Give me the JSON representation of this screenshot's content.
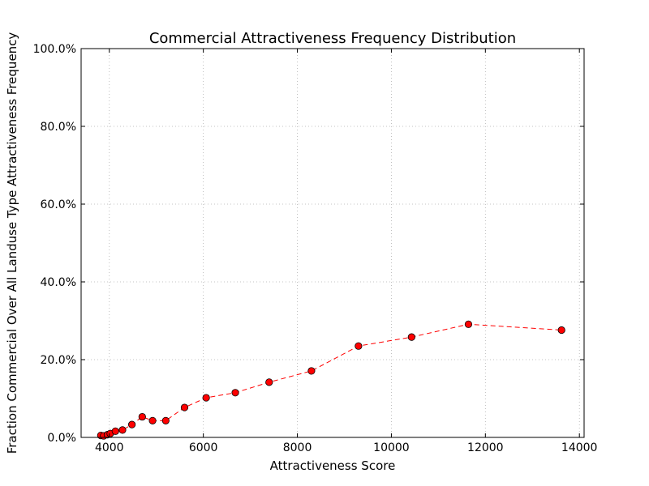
{
  "chart_data": {
    "type": "line",
    "title": "Commercial Attractiveness Frequency Distribution",
    "xlabel": "Attractiveness Score",
    "ylabel": "Fraction Commercial Over All Landuse Type Attractiveness Frequency",
    "xlim": [
      3400,
      14100
    ],
    "ylim": [
      0,
      1
    ],
    "xticks": [
      {
        "value": 4000,
        "label": "4000"
      },
      {
        "value": 6000,
        "label": "6000"
      },
      {
        "value": 8000,
        "label": "8000"
      },
      {
        "value": 10000,
        "label": "10000"
      },
      {
        "value": 12000,
        "label": "12000"
      },
      {
        "value": 14000,
        "label": "14000"
      }
    ],
    "yticks": [
      {
        "value": 0.0,
        "label": "0.0%"
      },
      {
        "value": 0.2,
        "label": "20.0%"
      },
      {
        "value": 0.4,
        "label": "40.0%"
      },
      {
        "value": 0.6,
        "label": "60.0%"
      },
      {
        "value": 0.8,
        "label": "80.0%"
      },
      {
        "value": 1.0,
        "label": "100.0%"
      }
    ],
    "grid": true,
    "series": [
      {
        "color": "#ff0000",
        "marker_color": "#ff0000",
        "line_style": "dashed",
        "x": [
          3820,
          3880,
          3960,
          4020,
          4130,
          4280,
          4480,
          4700,
          4920,
          5200,
          5600,
          6060,
          6680,
          7400,
          8300,
          9300,
          10430,
          11640,
          13620
        ],
        "y": [
          0.005,
          0.004,
          0.007,
          0.01,
          0.016,
          0.019,
          0.033,
          0.053,
          0.043,
          0.043,
          0.077,
          0.102,
          0.115,
          0.142,
          0.171,
          0.235,
          0.258,
          0.291,
          0.276
        ]
      }
    ]
  }
}
